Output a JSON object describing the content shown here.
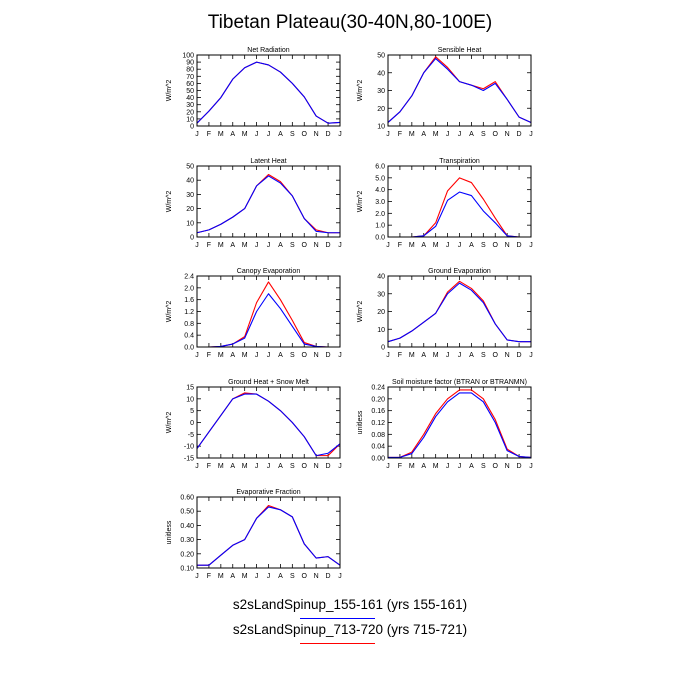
{
  "title": "Tibetan Plateau(30-40N,80-100E)",
  "colors": {
    "series1": "#ff0000",
    "series2": "#0000ff"
  },
  "months": [
    "J",
    "F",
    "M",
    "A",
    "M",
    "J",
    "J",
    "A",
    "S",
    "O",
    "N",
    "D",
    "J"
  ],
  "chart_data": [
    {
      "type": "line",
      "title": "Net Radiation",
      "ylabel": "W/m^2",
      "ylim": [
        0,
        100
      ],
      "yticks": [
        "0",
        "10",
        "20",
        "30",
        "40",
        "50",
        "60",
        "70",
        "80",
        "90",
        "100"
      ],
      "series": [
        {
          "values": [
            4,
            21,
            40,
            66,
            82,
            90,
            86,
            76,
            60,
            41,
            14,
            4,
            5
          ]
        },
        {
          "values": [
            4,
            21,
            40,
            66,
            82,
            90,
            86,
            76,
            60,
            41,
            14,
            4,
            5
          ]
        }
      ]
    },
    {
      "type": "line",
      "title": "Sensible Heat",
      "ylabel": "W/m^2",
      "ylim": [
        10,
        50
      ],
      "yticks": [
        "10",
        "20",
        "30",
        "40",
        "50"
      ],
      "series": [
        {
          "values": [
            12,
            18,
            27,
            40,
            49,
            43,
            35,
            33,
            31,
            35,
            25,
            15,
            12
          ]
        },
        {
          "values": [
            12,
            18,
            27,
            40,
            48,
            42,
            35,
            33,
            30,
            34,
            25,
            15,
            12
          ]
        }
      ]
    },
    {
      "type": "line",
      "title": "Latent Heat",
      "ylabel": "W/m^2",
      "ylim": [
        0,
        50
      ],
      "yticks": [
        "0",
        "10",
        "20",
        "30",
        "40",
        "50"
      ],
      "series": [
        {
          "values": [
            3,
            5,
            9,
            14,
            20,
            36,
            44,
            39,
            29,
            13,
            5,
            3,
            3
          ]
        },
        {
          "values": [
            3,
            5,
            9,
            14,
            20,
            36,
            43,
            38,
            29,
            13,
            4,
            3,
            3
          ]
        }
      ]
    },
    {
      "type": "line",
      "title": "Transpiration",
      "ylabel": "W/m^2",
      "ylim": [
        0,
        6
      ],
      "yticks": [
        "0.0",
        "1.0",
        "2.0",
        "3.0",
        "4.0",
        "5.0",
        "6.0"
      ],
      "series": [
        {
          "values": [
            0,
            0,
            0,
            0.1,
            1.2,
            3.9,
            5.0,
            4.6,
            3.2,
            1.6,
            0.1,
            0,
            0
          ]
        },
        {
          "values": [
            0,
            0,
            0,
            0.1,
            0.9,
            3.1,
            3.8,
            3.5,
            2.2,
            1.2,
            0.1,
            0,
            0
          ]
        }
      ]
    },
    {
      "type": "line",
      "title": "Canopy Evaporation",
      "ylabel": "W/m^2",
      "ylim": [
        0,
        2.4
      ],
      "yticks": [
        "0.0",
        "0.4",
        "0.8",
        "1.2",
        "1.6",
        "2.0",
        "2.4"
      ],
      "series": [
        {
          "values": [
            0,
            0,
            0.02,
            0.1,
            0.35,
            1.5,
            2.2,
            1.6,
            0.9,
            0.15,
            0.02,
            0,
            0
          ]
        },
        {
          "values": [
            0,
            0,
            0.02,
            0.1,
            0.3,
            1.2,
            1.8,
            1.3,
            0.7,
            0.1,
            0.02,
            0,
            0
          ]
        }
      ]
    },
    {
      "type": "line",
      "title": "Ground Evaporation",
      "ylabel": "W/m^2",
      "ylim": [
        0,
        40
      ],
      "yticks": [
        "0",
        "10",
        "20",
        "30",
        "40"
      ],
      "series": [
        {
          "values": [
            3,
            5,
            9,
            14,
            19,
            31,
            37,
            33,
            26,
            13,
            4,
            3,
            3
          ]
        },
        {
          "values": [
            3,
            5,
            9,
            14,
            19,
            30,
            36,
            32,
            25,
            13,
            4,
            3,
            3
          ]
        }
      ]
    },
    {
      "type": "line",
      "title": "Ground Heat + Snow Melt",
      "ylabel": "W/m^2",
      "ylim": [
        -15,
        15
      ],
      "yticks": [
        "-15",
        "-10",
        "-5",
        "0",
        "5",
        "10",
        "15"
      ],
      "series": [
        {
          "values": [
            -11,
            -4,
            3,
            10,
            12.5,
            12,
            9,
            5,
            0,
            -6,
            -14,
            -14,
            -9
          ]
        },
        {
          "values": [
            -11,
            -4,
            3,
            10,
            12,
            12,
            9,
            5,
            0,
            -6,
            -14,
            -13,
            -9
          ]
        }
      ]
    },
    {
      "type": "line",
      "title": "Soil moisture factor (BTRAN or BTRANMN)",
      "ylabel": "unitless",
      "ylim": [
        0,
        0.24
      ],
      "yticks": [
        "0.00",
        "0.04",
        "0.08",
        "0.12",
        "0.16",
        "0.20",
        "0.24"
      ],
      "series": [
        {
          "values": [
            0.002,
            0.002,
            0.02,
            0.08,
            0.15,
            0.2,
            0.23,
            0.23,
            0.2,
            0.13,
            0.03,
            0.005,
            0.002
          ]
        },
        {
          "values": [
            0.002,
            0.002,
            0.015,
            0.07,
            0.14,
            0.19,
            0.22,
            0.22,
            0.19,
            0.12,
            0.025,
            0.005,
            0.002
          ]
        }
      ]
    },
    {
      "type": "line",
      "title": "Evaporative Fraction",
      "ylabel": "unitless",
      "ylim": [
        0.1,
        0.6
      ],
      "yticks": [
        "0.10",
        "0.20",
        "0.30",
        "0.40",
        "0.50",
        "0.60"
      ],
      "series": [
        {
          "values": [
            0.12,
            0.12,
            0.19,
            0.26,
            0.3,
            0.45,
            0.54,
            0.51,
            0.46,
            0.27,
            0.17,
            0.18,
            0.12
          ]
        },
        {
          "values": [
            0.12,
            0.12,
            0.19,
            0.26,
            0.3,
            0.45,
            0.53,
            0.51,
            0.46,
            0.27,
            0.17,
            0.18,
            0.12
          ]
        }
      ]
    }
  ],
  "legend": [
    {
      "label": "s2sLandSpinup_155-161 (yrs 155-161)",
      "color": "#0000ff"
    },
    {
      "label": "s2sLandSpinup_713-720 (yrs 715-721)",
      "color": "#ff0000"
    }
  ]
}
